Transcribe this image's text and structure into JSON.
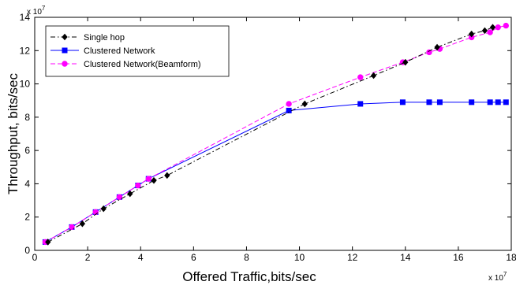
{
  "chart_data": {
    "type": "line",
    "xlabel": "Offered Traffic,bits/sec",
    "ylabel": "Throughput, bits/sec",
    "x_multiplier": "x 10",
    "x_multiplier_exp": "7",
    "y_multiplier": "x 10",
    "y_multiplier_exp": "7",
    "xlim": [
      0,
      18
    ],
    "ylim": [
      0,
      14
    ],
    "x_ticks": [
      "0",
      "2",
      "4",
      "6",
      "8",
      "10",
      "12",
      "14",
      "16",
      "18"
    ],
    "y_ticks": [
      "0",
      "2",
      "4",
      "6",
      "8",
      "10",
      "12",
      "14"
    ],
    "grid": false,
    "legend_position": "top-left",
    "series": [
      {
        "name": "Single hop",
        "color": "#000000",
        "line_style": "dashdot",
        "marker": "diamond",
        "x": [
          0.5,
          1.8,
          2.6,
          3.6,
          4.5,
          5.0,
          10.2,
          12.8,
          14.0,
          15.2,
          16.5,
          17.0,
          17.3
        ],
        "y": [
          0.5,
          1.6,
          2.5,
          3.4,
          4.2,
          4.5,
          8.8,
          10.5,
          11.3,
          12.2,
          13.0,
          13.2,
          13.4
        ]
      },
      {
        "name": "Clustered Network",
        "color": "#0000ff",
        "line_style": "solid",
        "marker": "square",
        "x": [
          0.4,
          1.4,
          2.3,
          3.2,
          3.9,
          4.3,
          9.6,
          12.3,
          13.9,
          14.9,
          15.3,
          16.5,
          17.2,
          17.5,
          17.8
        ],
        "y": [
          0.5,
          1.4,
          2.3,
          3.2,
          3.9,
          4.3,
          8.4,
          8.8,
          8.9,
          8.9,
          8.9,
          8.9,
          8.9,
          8.9,
          8.9
        ]
      },
      {
        "name": "Clustered Network(Beamform)",
        "color": "#ff00ff",
        "line_style": "dashed",
        "marker": "circle",
        "x": [
          0.4,
          1.4,
          2.3,
          3.2,
          3.9,
          4.3,
          9.6,
          12.3,
          13.9,
          14.9,
          15.3,
          16.5,
          17.2,
          17.5,
          17.8
        ],
        "y": [
          0.5,
          1.4,
          2.3,
          3.2,
          3.9,
          4.3,
          8.8,
          10.4,
          11.3,
          11.9,
          12.1,
          12.8,
          13.1,
          13.4,
          13.5
        ]
      }
    ]
  }
}
